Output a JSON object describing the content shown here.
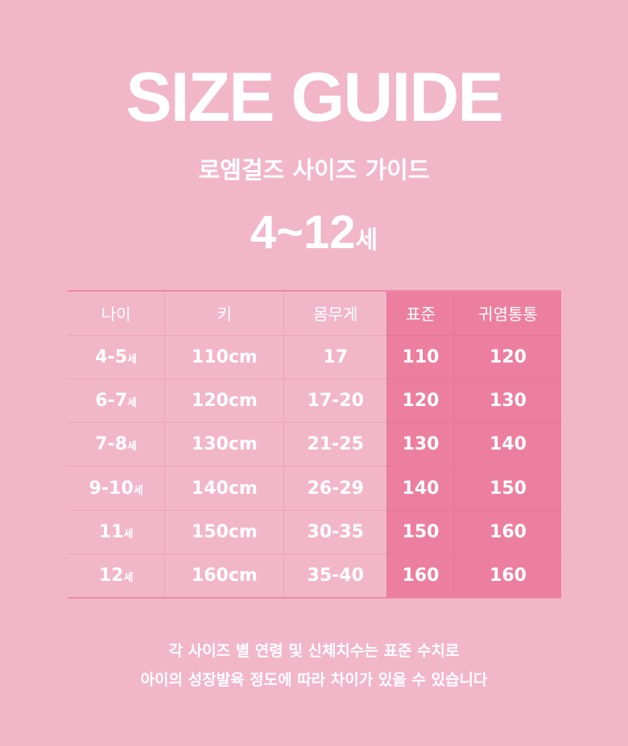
{
  "title": "SIZE GUIDE",
  "subtitle": "로엠걸즈 사이즈 가이드",
  "age_range": {
    "number": "4~12",
    "suffix": "세"
  },
  "colors": {
    "background": "#f2b6c9",
    "highlight": "#ec7f9f"
  },
  "table": {
    "headers": [
      "나이",
      "키",
      "몸무게",
      "표준",
      "귀염통통"
    ],
    "rows": [
      {
        "age": "4-5",
        "age_suffix": "세",
        "height": "110cm",
        "weight": "17",
        "standard": "110",
        "chubby": "120"
      },
      {
        "age": "6-7",
        "age_suffix": "세",
        "height": "120cm",
        "weight": "17-20",
        "standard": "120",
        "chubby": "130"
      },
      {
        "age": "7-8",
        "age_suffix": "세",
        "height": "130cm",
        "weight": "21-25",
        "standard": "130",
        "chubby": "140"
      },
      {
        "age": "9-10",
        "age_suffix": "세",
        "height": "140cm",
        "weight": "26-29",
        "standard": "140",
        "chubby": "150"
      },
      {
        "age": "11",
        "age_suffix": "세",
        "height": "150cm",
        "weight": "30-35",
        "standard": "150",
        "chubby": "160"
      },
      {
        "age": "12",
        "age_suffix": "세",
        "height": "160cm",
        "weight": "35-40",
        "standard": "160",
        "chubby": "160"
      }
    ]
  },
  "note": [
    "각 사이즈 별 연령 및 신체치수는 표준 수치로",
    "아이의 성장발육 정도에 따라 차이가 있을 수 있습니다"
  ]
}
